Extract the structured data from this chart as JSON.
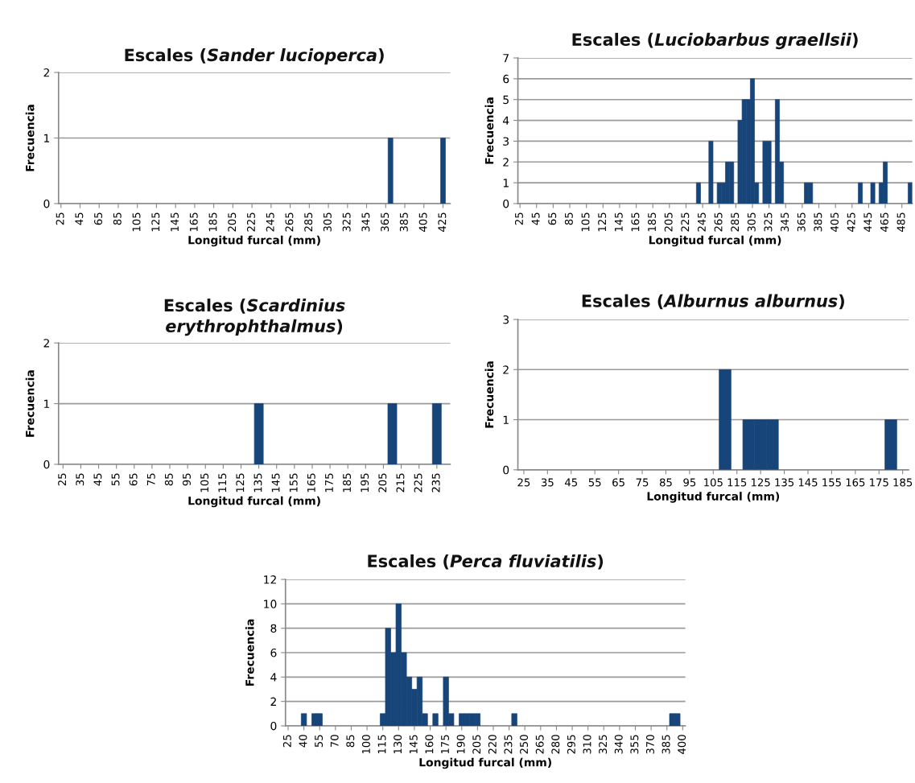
{
  "chart_data": [
    {
      "type": "histogram",
      "title": "Escales (Sander lucioperca)",
      "xlabel": "Longitud furcal (mm)",
      "ylabel": "Frecuencia",
      "color": "#17457a",
      "grid": "y",
      "bins": [
        367.5,
        372.5,
        422.5,
        427.5
      ],
      "values": [
        1,
        0,
        1
      ],
      "xlim": [
        22.5,
        432.5
      ],
      "xticks": [
        25,
        45,
        65,
        85,
        105,
        125,
        145,
        165,
        185,
        205,
        225,
        245,
        265,
        285,
        305,
        325,
        345,
        365,
        385,
        405,
        425
      ],
      "ylim": [
        0,
        2
      ],
      "yticks": [
        0,
        1,
        2
      ]
    },
    {
      "type": "histogram",
      "title": "Escales (Luciobarbus graellsii)",
      "xlabel": "Longitud furcal (mm)",
      "ylabel": "Frecuencia",
      "color": "#17457a",
      "grid": "y",
      "bins": [
        237.5,
        242.5,
        252.5,
        257.5,
        262.5,
        267.5,
        272.5,
        277.5,
        282.5,
        287.5,
        292.5,
        297.5,
        302.5,
        307.5,
        312.5,
        317.5,
        322.5,
        327.5,
        332.5,
        337.5,
        342.5,
        367.5,
        372.5,
        377.5,
        432.5,
        437.5,
        447.5,
        452.5,
        457.5,
        462.5,
        467.5,
        492.5,
        497.5
      ],
      "values": [
        1,
        0,
        3,
        0,
        1,
        1,
        2,
        2,
        0,
        4,
        5,
        5,
        6,
        1,
        0,
        3,
        3,
        0,
        5,
        2,
        0,
        1,
        1,
        0,
        1,
        0,
        1,
        0,
        1,
        2,
        0,
        1
      ],
      "xlim": [
        22.5,
        497.5
      ],
      "xticks": [
        25,
        45,
        65,
        85,
        105,
        125,
        145,
        165,
        185,
        205,
        225,
        245,
        265,
        285,
        305,
        325,
        345,
        365,
        385,
        405,
        425,
        445,
        465,
        485
      ],
      "ylim": [
        0,
        7
      ],
      "yticks": [
        0,
        1,
        2,
        3,
        4,
        5,
        6,
        7
      ]
    },
    {
      "type": "histogram",
      "title": "Escales (Scardinius erythrophthalmus)",
      "xlabel": "Longitud furcal (mm)",
      "ylabel": "Frecuencia",
      "color": "#17457a",
      "grid": "y",
      "bins": [
        132.5,
        137.5,
        207.5,
        212.5,
        232.5,
        237.5
      ],
      "values": [
        1,
        0,
        1,
        0,
        1
      ],
      "xlim": [
        22.5,
        242.5
      ],
      "xticks": [
        25,
        35,
        45,
        55,
        65,
        75,
        85,
        95,
        105,
        115,
        125,
        135,
        145,
        155,
        165,
        175,
        185,
        195,
        205,
        215,
        225,
        235
      ],
      "ylim": [
        0,
        2
      ],
      "yticks": [
        0,
        1,
        2
      ]
    },
    {
      "type": "histogram",
      "title": "Escales (Alburnus alburnus)",
      "xlabel": "Longitud furcal (mm)",
      "ylabel": "Frecuencia",
      "color": "#17457a",
      "grid": "y",
      "bins": [
        107.5,
        112.5,
        117.5,
        122.5,
        127.5,
        132.5,
        177.5,
        182.5
      ],
      "values": [
        2,
        0,
        1,
        1,
        1,
        0,
        1
      ],
      "xlim": [
        22.5,
        187.5
      ],
      "xticks": [
        25,
        35,
        45,
        55,
        65,
        75,
        85,
        95,
        105,
        115,
        125,
        135,
        145,
        155,
        165,
        175,
        185
      ],
      "ylim": [
        0,
        3
      ],
      "yticks": [
        0,
        1,
        2,
        3
      ]
    },
    {
      "type": "histogram",
      "title": "Escales (Perca fluviatilis)",
      "xlabel": "Longitud furcal (mm)",
      "ylabel": "Frecuencia",
      "color": "#17457a",
      "grid": "y",
      "bins": [
        37.5,
        42.5,
        47.5,
        52.5,
        57.5,
        112.5,
        117.5,
        122.5,
        127.5,
        132.5,
        137.5,
        142.5,
        147.5,
        152.5,
        157.5,
        162.5,
        167.5,
        172.5,
        177.5,
        182.5,
        187.5,
        192.5,
        197.5,
        202.5,
        207.5,
        237.5,
        242.5,
        387.5,
        392.5,
        397.5
      ],
      "values": [
        1,
        0,
        1,
        1,
        0,
        1,
        8,
        6,
        10,
        6,
        4,
        3,
        4,
        1,
        0,
        1,
        0,
        4,
        1,
        0,
        1,
        1,
        1,
        1,
        0,
        1,
        0,
        1,
        1
      ],
      "xlim": [
        22.5,
        402.5
      ],
      "xticks": [
        25,
        40,
        55,
        70,
        85,
        100,
        115,
        130,
        145,
        160,
        175,
        190,
        205,
        220,
        235,
        250,
        265,
        280,
        295,
        310,
        325,
        340,
        355,
        370,
        385,
        400
      ],
      "ylim": [
        0,
        12
      ],
      "yticks": [
        0,
        2,
        4,
        6,
        8,
        10,
        12
      ]
    }
  ]
}
